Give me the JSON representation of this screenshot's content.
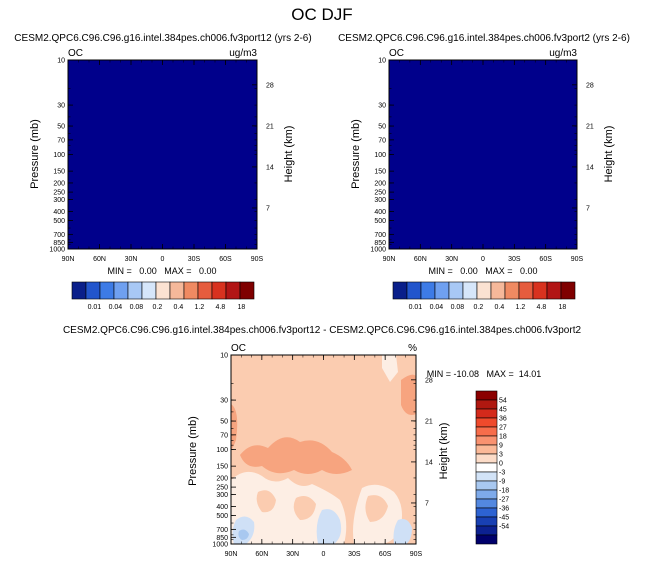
{
  "page_title": "OC DJF",
  "chart_data": [
    {
      "type": "heatmap",
      "title": "CESM2.QPC6.C96.C96.g16.intel.384pes.ch006.fv3port12 (yrs 2-6)",
      "left_label": "OC",
      "right_label": "ug/m3",
      "xlabel": "",
      "ylabel": "Pressure (mb)",
      "ylabel_right": "Height (km)",
      "x_ticks": [
        "90N",
        "60N",
        "30N",
        "0",
        "30S",
        "60S",
        "90S"
      ],
      "y_ticks": [
        "10",
        "30",
        "50",
        "70",
        "100",
        "150",
        "200",
        "250",
        "300",
        "400",
        "500",
        "700",
        "850",
        "1000"
      ],
      "y_scale": "log",
      "ylim": [
        1000,
        10
      ],
      "height_ticks": [
        "7",
        "14",
        "21",
        "28"
      ],
      "stats": "MIN =   0.00   MAX =   0.00",
      "min": 0.0,
      "max": 0.0,
      "field": "uniform 0.00 everywhere",
      "fill_color": "#00008b",
      "colorbar": {
        "labels": [
          "0.01",
          "0.04",
          "0.08",
          "0.2",
          "0.4",
          "1.2",
          "4.8",
          "18"
        ],
        "colors": [
          "#0a1f8a",
          "#2255cc",
          "#3d7be6",
          "#6fa0f0",
          "#a8c8f5",
          "#d6e6fa",
          "#fbe2d2",
          "#f5b89a",
          "#ef8a62",
          "#e65c3e",
          "#d8321f",
          "#b21515",
          "#7f0000"
        ]
      }
    },
    {
      "type": "heatmap",
      "title": "CESM2.QPC6.C96.C96.g16.intel.384pes.ch006.fv3port2 (yrs 2-6)",
      "left_label": "OC",
      "right_label": "ug/m3",
      "xlabel": "",
      "ylabel": "Pressure (mb)",
      "ylabel_right": "Height (km)",
      "x_ticks": [
        "90N",
        "60N",
        "30N",
        "0",
        "30S",
        "60S",
        "90S"
      ],
      "y_ticks": [
        "10",
        "30",
        "50",
        "70",
        "100",
        "150",
        "200",
        "250",
        "300",
        "400",
        "500",
        "700",
        "850",
        "1000"
      ],
      "y_scale": "log",
      "ylim": [
        1000,
        10
      ],
      "height_ticks": [
        "7",
        "14",
        "21",
        "28"
      ],
      "stats": "MIN =   0.00   MAX =   0.00",
      "min": 0.0,
      "max": 0.0,
      "field": "uniform 0.00 everywhere",
      "fill_color": "#00008b",
      "colorbar": {
        "labels": [
          "0.01",
          "0.04",
          "0.08",
          "0.2",
          "0.4",
          "1.2",
          "4.8",
          "18"
        ],
        "colors": [
          "#0a1f8a",
          "#2255cc",
          "#3d7be6",
          "#6fa0f0",
          "#a8c8f5",
          "#d6e6fa",
          "#fbe2d2",
          "#f5b89a",
          "#ef8a62",
          "#e65c3e",
          "#d8321f",
          "#b21515",
          "#7f0000"
        ]
      }
    },
    {
      "type": "heatmap",
      "title": "CESM2.QPC6.C96.C96.g16.intel.384pes.ch006.fv3port12 - CESM2.QPC6.C96.C96.g16.intel.384pes.ch006.fv3port2",
      "left_label": "OC",
      "right_label": "%",
      "xlabel": "",
      "ylabel": "Pressure (mb)",
      "ylabel_right": "Height (km)",
      "x_ticks": [
        "90N",
        "60N",
        "30N",
        "0",
        "30S",
        "60S",
        "90S"
      ],
      "y_ticks": [
        "10",
        "30",
        "50",
        "70",
        "100",
        "150",
        "200",
        "250",
        "300",
        "400",
        "500",
        "700",
        "850",
        "1000"
      ],
      "y_scale": "log",
      "ylim": [
        1000,
        10
      ],
      "height_ticks": [
        "7",
        "14",
        "21",
        "28"
      ],
      "stats": "MIN = -10.08   MAX =  14.01",
      "min": -10.08,
      "max": 14.01,
      "background_value_range": [
        3,
        9
      ],
      "features": [
        {
          "region": "upper-left to middle band, 100-150 mb",
          "value_range": [
            9,
            18
          ]
        },
        {
          "region": "upper right near 90S, 20-40 mb",
          "value_range": [
            9,
            18
          ]
        },
        {
          "region": "top right edge near 10 mb",
          "value_range": [
            0,
            3
          ]
        },
        {
          "region": "lower troposphere patches, 200-1000 mb",
          "value_range": [
            -3,
            3
          ]
        },
        {
          "region": "near-surface small patches",
          "value_range": [
            -9,
            -3
          ]
        }
      ],
      "colorbar": {
        "labels": [
          "54",
          "45",
          "36",
          "27",
          "18",
          "9",
          "3",
          "0",
          "-3",
          "-9",
          "-18",
          "-27",
          "-36",
          "-45",
          "-54"
        ],
        "colors": [
          "#8b0000",
          "#b01810",
          "#d42a1b",
          "#ef4a2c",
          "#f76d4b",
          "#f99270",
          "#fbb998",
          "#fcdcc8",
          "#ffffff",
          "#d2e3f7",
          "#a8c8f0",
          "#7eaaea",
          "#5388e0",
          "#2d63d2",
          "#1840b3",
          "#0c2191",
          "#00006b"
        ]
      }
    }
  ]
}
